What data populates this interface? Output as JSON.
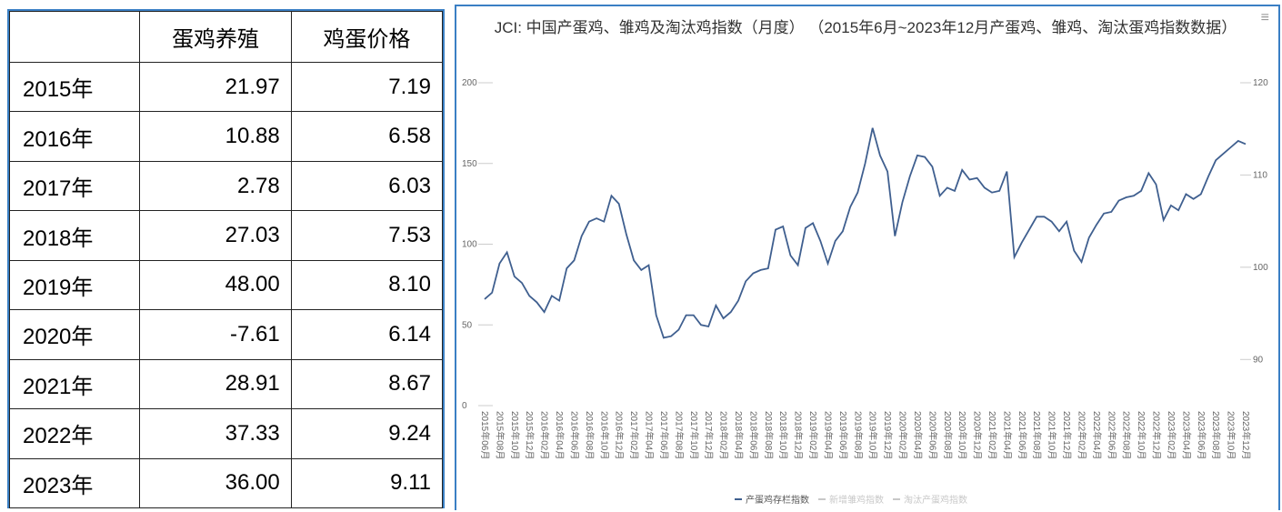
{
  "table": {
    "header": [
      "蛋鸡养殖",
      "鸡蛋价格"
    ],
    "rows": [
      [
        "2015年",
        "21.97",
        "7.19"
      ],
      [
        "2016年",
        "10.88",
        "6.58"
      ],
      [
        "2017年",
        "2.78",
        "6.03"
      ],
      [
        "2018年",
        "27.03",
        "7.53"
      ],
      [
        "2019年",
        "48.00",
        "8.10"
      ],
      [
        "2020年",
        "-7.61",
        "6.14"
      ],
      [
        "2021年",
        "28.91",
        "8.67"
      ],
      [
        "2022年",
        "37.33",
        "9.24"
      ],
      [
        "2023年",
        "36.00",
        "9.11"
      ]
    ]
  },
  "chart_data": {
    "type": "line",
    "title": "JCI: 中国产蛋鸡、雏鸡及淘汰鸡指数（月度） （2015年6月~2023年12月产蛋鸡、雏鸡、淘汰蛋鸡指数数据）",
    "categories": [
      "2015年06月",
      null,
      "2015年08月",
      null,
      "2015年10月",
      null,
      "2015年12月",
      null,
      "2016年02月",
      null,
      "2016年04月",
      null,
      "2016年06月",
      null,
      "2016年08月",
      null,
      "2016年10月",
      null,
      "2016年12月",
      null,
      "2017年02月",
      null,
      "2017年04月",
      null,
      "2017年06月",
      null,
      "2017年08月",
      null,
      "2017年10月",
      null,
      "2017年12月",
      null,
      "2018年02月",
      null,
      "2018年04月",
      null,
      "2018年06月",
      null,
      "2018年08月",
      null,
      "2018年10月",
      null,
      "2018年12月",
      null,
      "2019年02月",
      null,
      "2019年04月",
      null,
      "2019年06月",
      null,
      "2019年08月",
      null,
      "2019年10月",
      null,
      "2019年12月",
      null,
      "2020年02月",
      null,
      "2020年04月",
      null,
      "2020年06月",
      null,
      "2020年08月",
      null,
      "2020年10月",
      null,
      "2020年12月",
      null,
      "2021年02月",
      null,
      "2021年04月",
      null,
      "2021年06月",
      null,
      "2021年08月",
      null,
      "2021年10月",
      null,
      "2021年12月",
      null,
      "2022年02月",
      null,
      "2022年04月",
      null,
      "2022年06月",
      null,
      "2022年08月",
      null,
      "2022年10月",
      null,
      "2022年12月",
      null,
      "2023年02月",
      null,
      "2023年04月",
      null,
      "2023年06月",
      null,
      "2023年08月",
      null,
      "2023年10月",
      null,
      "2023年12月"
    ],
    "series": [
      {
        "name": "产蛋鸡存栏指数",
        "color": "#3f5f8f",
        "values": [
          66,
          70,
          88,
          95,
          80,
          76,
          68,
          64,
          58,
          68,
          65,
          85,
          90,
          105,
          114,
          116,
          114,
          130,
          125,
          106,
          90,
          84,
          87,
          56,
          42,
          43,
          47,
          56,
          56,
          50,
          49,
          62,
          54,
          58,
          65,
          77,
          82,
          84,
          85,
          109,
          111,
          93,
          87,
          110,
          113,
          102,
          88,
          102,
          108,
          123,
          132,
          150,
          172,
          155,
          145,
          105,
          126,
          142,
          155,
          154,
          148,
          130,
          135,
          133,
          146,
          140,
          141,
          135,
          132,
          133,
          145,
          92,
          101,
          109,
          117,
          117,
          114,
          108,
          114,
          96,
          89,
          104,
          112,
          119,
          120,
          127,
          129,
          130,
          133,
          144,
          137,
          115,
          124,
          121,
          131,
          128,
          131,
          142,
          152,
          156,
          160,
          164,
          162
        ]
      }
    ],
    "hidden_series": [
      {
        "name": "新增雏鸡指数",
        "color": "#c8c8c8"
      },
      {
        "name": "淘汰产蛋鸡指数",
        "color": "#c8c8c8"
      }
    ],
    "ylim": [
      0,
      200
    ],
    "yticks": [
      0,
      50,
      100,
      150,
      200
    ],
    "y2lim": [
      85,
      120
    ],
    "y2ticks": [
      90,
      100,
      110,
      120
    ],
    "grid": false
  }
}
